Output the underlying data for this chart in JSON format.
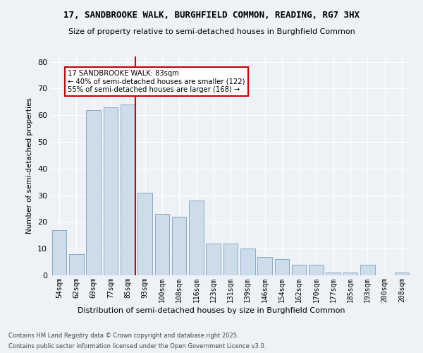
{
  "title1": "17, SANDBROOKE WALK, BURGHFIELD COMMON, READING, RG7 3HX",
  "title2": "Size of property relative to semi-detached houses in Burghfield Common",
  "xlabel": "Distribution of semi-detached houses by size in Burghfield Common",
  "ylabel": "Number of semi-detached properties",
  "categories": [
    "54sqm",
    "62sqm",
    "69sqm",
    "77sqm",
    "85sqm",
    "93sqm",
    "100sqm",
    "108sqm",
    "116sqm",
    "123sqm",
    "131sqm",
    "139sqm",
    "146sqm",
    "154sqm",
    "162sqm",
    "170sqm",
    "177sqm",
    "185sqm",
    "193sqm",
    "200sqm",
    "208sqm"
  ],
  "values": [
    17,
    8,
    62,
    63,
    64,
    31,
    23,
    22,
    28,
    12,
    12,
    10,
    7,
    6,
    4,
    4,
    1,
    1,
    4,
    0,
    1
  ],
  "bar_color": "#ccdce8",
  "bar_edge_color": "#88aac8",
  "vline_color": "#cc0000",
  "annotation_text": "17 SANDBROOKE WALK: 83sqm\n← 40% of semi-detached houses are smaller (122)\n55% of semi-detached houses are larger (168) →",
  "annotation_box_color": "#ffffff",
  "annotation_box_edge": "#cc0000",
  "footer1": "Contains HM Land Registry data © Crown copyright and database right 2025.",
  "footer2": "Contains public sector information licensed under the Open Government Licence v3.0.",
  "ylim": [
    0,
    82
  ],
  "background_color": "#eef2f7",
  "plot_bg_color": "#eef2f7"
}
